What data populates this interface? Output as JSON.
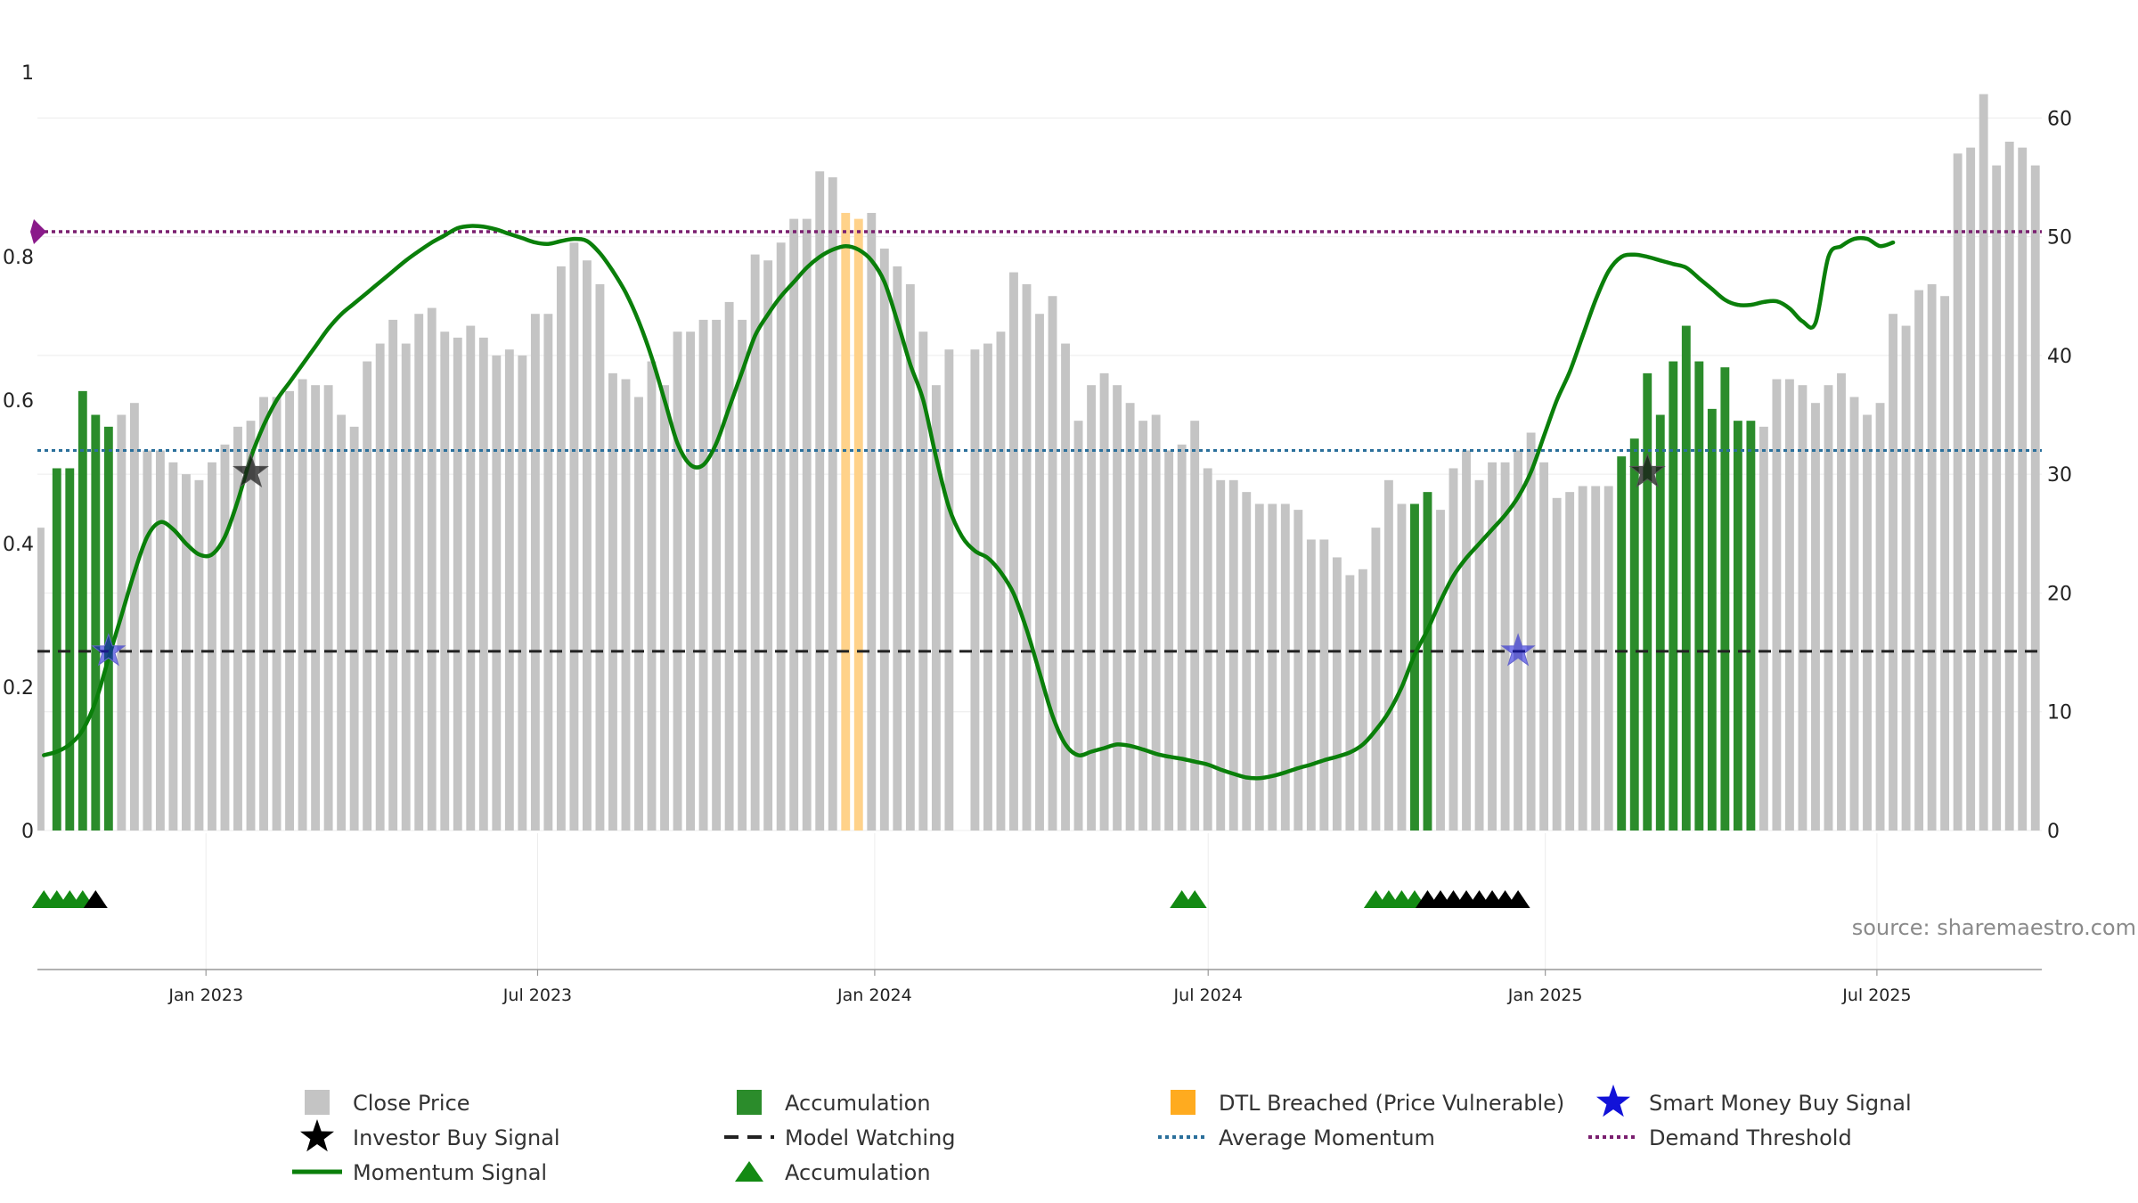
{
  "chart_data": {
    "type": "bar",
    "source_text": "source: sharemaestro.com",
    "colors": {
      "close_price": "#c4c4c4",
      "accumulation": "#2b8c2b",
      "dtl_breached": "#ffd28a",
      "momentum": "#0a7f0a",
      "average_momentum": "#2a6f9b",
      "demand_threshold": "#7a1f6f",
      "model_watching": "#222222",
      "smart_money": "#1212d8",
      "investor": "#1a1a1a",
      "triangle_accumulation": "#138a13",
      "triangle_watching": "#000000"
    },
    "left_axis": {
      "min": 0,
      "max": 1.06,
      "ticks": [
        0,
        0.2,
        0.4,
        0.6,
        0.8
      ],
      "top_label": "1"
    },
    "right_axis": {
      "min": 0,
      "max": 64,
      "ticks": [
        0,
        10,
        20,
        30,
        40,
        50,
        60
      ]
    },
    "x_axis": {
      "start": "2022-10-01",
      "end": "2025-09-29",
      "ticks": [
        {
          "date": "2023-01-01",
          "label": "Jan 2023"
        },
        {
          "date": "2023-07-01",
          "label": "Jul 2023"
        },
        {
          "date": "2024-01-01",
          "label": "Jan 2024"
        },
        {
          "date": "2024-07-01",
          "label": "Jul 2024"
        },
        {
          "date": "2025-01-01",
          "label": "Jan 2025"
        },
        {
          "date": "2025-07-01",
          "label": "Jul 2025"
        }
      ]
    },
    "close_price": [
      25.5,
      30.5,
      30.5,
      37,
      35,
      34,
      35,
      36,
      32,
      32,
      31,
      30,
      29.5,
      31,
      32.5,
      34,
      34.5,
      36.5,
      36.5,
      37,
      38,
      37.5,
      37.5,
      35,
      34,
      39.5,
      41,
      43,
      41,
      43.5,
      44,
      42,
      41.5,
      42.5,
      41.5,
      40,
      40.5,
      40,
      43.5,
      43.5,
      47.5,
      49.5,
      48,
      46,
      38.5,
      38,
      36.5,
      39.5,
      37.5,
      42,
      42,
      43,
      43,
      44.5,
      43,
      48.5,
      48,
      49.5,
      51.5,
      51.5,
      55.5,
      55,
      52,
      51.5,
      52,
      49,
      47.5,
      46,
      42,
      37.5,
      40.5,
      0,
      40.5,
      41,
      42,
      47,
      46,
      43.5,
      45,
      41,
      34.5,
      37.5,
      38.5,
      37.5,
      36,
      34.5,
      35,
      32,
      32.5,
      34.5,
      30.5,
      29.5,
      29.5,
      28.5,
      27.5,
      27.5,
      27.5,
      27,
      24.5,
      24.5,
      23,
      21.5,
      22,
      25.5,
      29.5,
      27.5,
      27.5,
      28.5,
      27,
      30.5,
      32,
      29.5,
      31,
      31,
      32,
      33.5,
      31,
      28,
      28.5,
      29,
      29,
      29,
      31.5,
      33,
      38.5,
      35,
      39.5,
      42.5,
      39.5,
      35.5,
      39,
      34.5,
      34.5,
      34,
      38,
      38,
      37.5,
      36,
      37.5,
      38.5,
      36.5,
      35,
      36,
      43.5,
      42.5,
      45.5,
      46,
      45,
      57,
      57.5,
      62,
      56,
      58,
      57.5,
      56
    ],
    "bar_state": "ADDDDDGGGGGGGGGGGGGGGGGGGGGGGGGGGGGGGGGGGGGGGGGGGGGGGGGGGGGGGGOOGGGGGGGGGGGGGGGGGGGGGGGGGGGGGGGGGGGGGGGGGGDDGGGGGGGGGGGGGGDDDDDDDDDDDGGGGGGGGGGGGGGGGGGGGGGGGGGGGGGGGGGGGGGGGGOOOOOOO",
    "momentum_signal": [
      0.105,
      0.11,
      0.12,
      0.14,
      0.18,
      0.24,
      0.3,
      0.36,
      0.41,
      0.43,
      0.42,
      0.4,
      0.385,
      0.385,
      0.41,
      0.46,
      0.52,
      0.565,
      0.6,
      0.625,
      0.65,
      0.675,
      0.7,
      0.72,
      0.735,
      0.75,
      0.765,
      0.78,
      0.795,
      0.808,
      0.82,
      0.83,
      0.84,
      0.843,
      0.842,
      0.838,
      0.832,
      0.826,
      0.82,
      0.818,
      0.822,
      0.825,
      0.822,
      0.805,
      0.78,
      0.75,
      0.71,
      0.66,
      0.6,
      0.54,
      0.51,
      0.51,
      0.54,
      0.59,
      0.64,
      0.69,
      0.72,
      0.745,
      0.765,
      0.785,
      0.8,
      0.81,
      0.815,
      0.81,
      0.795,
      0.765,
      0.71,
      0.65,
      0.6,
      0.52,
      0.45,
      0.41,
      0.39,
      0.38,
      0.36,
      0.33,
      0.28,
      0.22,
      0.16,
      0.12,
      0.105,
      0.11,
      0.115,
      0.12,
      0.118,
      0.113,
      0.107,
      0.103,
      0.1,
      0.096,
      0.092,
      0.085,
      0.079,
      0.074,
      0.073,
      0.076,
      0.081,
      0.087,
      0.092,
      0.098,
      0.103,
      0.109,
      0.12,
      0.14,
      0.165,
      0.2,
      0.245,
      0.28,
      0.32,
      0.355,
      0.38,
      0.4,
      0.42,
      0.44,
      0.465,
      0.5,
      0.55,
      0.6,
      0.64,
      0.69,
      0.74,
      0.78,
      0.8,
      0.803,
      0.8,
      0.795,
      0.79,
      0.785,
      0.77,
      0.755,
      0.74,
      0.733,
      0.733,
      0.737,
      0.738,
      0.728,
      0.71,
      0.708,
      0.8,
      0.815,
      0.825,
      0.825,
      0.815,
      0.82
    ],
    "average_momentum": 0.53,
    "demand_threshold": 0.835,
    "model_watching_level": 0.25,
    "investor_buy_signals": [
      {
        "index": 16,
        "value": 0.5
      },
      {
        "index": 124,
        "value": 0.5
      }
    ],
    "smart_money_buy_signals": [
      {
        "index": 5,
        "value": 0.25
      },
      {
        "index": 114,
        "value": 0.25
      }
    ],
    "triangle_markers": {
      "accumulation": [
        0,
        1,
        2,
        3,
        88,
        89,
        103,
        104,
        105,
        106
      ],
      "watching": [
        4,
        107,
        108,
        109,
        110,
        111,
        112,
        113,
        114
      ]
    },
    "legend": [
      {
        "label": "Close Price",
        "symbol": "square",
        "color": "#c4c4c4"
      },
      {
        "label": "Accumulation",
        "symbol": "square",
        "color": "#2b8c2b"
      },
      {
        "label": "DTL Breached (Price Vulnerable)",
        "symbol": "square",
        "color": "#ffab1f"
      },
      {
        "label": "Smart Money Buy Signal",
        "symbol": "star",
        "color": "#1212d8"
      },
      {
        "label": "Investor Buy Signal",
        "symbol": "star",
        "color": "#000000"
      },
      {
        "label": "Model Watching",
        "symbol": "dash",
        "color": "#222222"
      },
      {
        "label": "Average Momentum",
        "symbol": "dotted",
        "color": "#2a6f9b"
      },
      {
        "label": "Demand Threshold",
        "symbol": "dotted",
        "color": "#7a1f6f"
      },
      {
        "label": "Momentum Signal",
        "symbol": "line",
        "color": "#0a7f0a"
      },
      {
        "label": "Accumulation",
        "symbol": "triangle",
        "color": "#138a13"
      }
    ]
  }
}
